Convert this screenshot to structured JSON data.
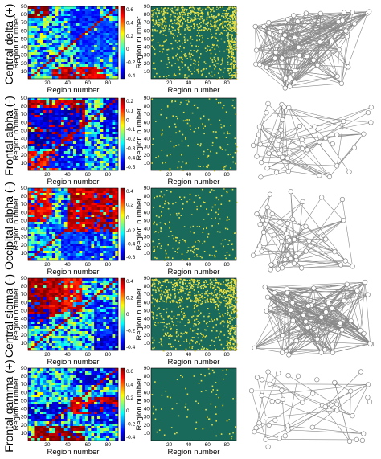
{
  "rows": [
    {
      "label": "Central delta (+)",
      "cbar_ticks": [
        "0.6",
        "0.4",
        "0.2",
        "0",
        "-0.2",
        "-0.4"
      ],
      "net_seed": 11,
      "net_edges": 260,
      "dense": true
    },
    {
      "label": "Frontal alpha (-)",
      "cbar_ticks": [
        "0.2",
        "0.1",
        "0",
        "-0.1",
        "-0.2",
        "-0.3",
        "-0.4",
        "-0.5"
      ],
      "net_seed": 23,
      "net_edges": 70,
      "dense": false
    },
    {
      "label": "Occipital alpha (-)",
      "cbar_ticks": [
        "0.4",
        "0.2",
        "0",
        "-0.2",
        "-0.4",
        "-0.6"
      ],
      "net_seed": 37,
      "net_edges": 90,
      "dense": false
    },
    {
      "label": "Central sigma (-)",
      "cbar_ticks": [
        "0.4",
        "0.2",
        "0",
        "-0.2",
        "-0.4"
      ],
      "net_seed": 51,
      "net_edges": 300,
      "dense": true
    },
    {
      "label": "Frontal gamma (+)",
      "cbar_ticks": [
        "0.6",
        "0.4",
        "0.2",
        "0",
        "-0.2",
        "-0.4"
      ],
      "net_seed": 67,
      "net_edges": 35,
      "dense": false
    }
  ],
  "axis": {
    "xlabel": "Region number",
    "ylabel": "Region number",
    "heat_xticks": [
      "20",
      "40",
      "60",
      "80"
    ],
    "heat_yticks": [
      "90",
      "80",
      "70",
      "60",
      "50",
      "40",
      "30",
      "20",
      "10"
    ],
    "bin_xticks": [
      "20",
      "40",
      "60",
      "80"
    ],
    "bin_yticks": [
      "90",
      "80",
      "70",
      "60",
      "50",
      "40",
      "30",
      "20",
      "10"
    ]
  },
  "colors": {
    "binary_bg": "#1a6a5c",
    "binary_fg": "#e8e043",
    "edge": "#8a8a8a",
    "node_fill": "#ffffff",
    "node_stroke": "#777777"
  },
  "chart_data": [
    {
      "type": "heatmap",
      "title": "",
      "ylabel": "Central delta (+)",
      "xlabel": "Region number",
      "x_range": [
        1,
        90
      ],
      "y_range": [
        1,
        90
      ],
      "color_range": [
        -0.4,
        0.6
      ]
    },
    {
      "type": "heatmap",
      "title": "",
      "ylabel": "Frontal alpha (-)",
      "xlabel": "Region number",
      "x_range": [
        1,
        90
      ],
      "y_range": [
        1,
        90
      ],
      "color_range": [
        -0.5,
        0.2
      ]
    },
    {
      "type": "heatmap",
      "title": "",
      "ylabel": "Occipital alpha (-)",
      "xlabel": "Region number",
      "x_range": [
        1,
        90
      ],
      "y_range": [
        1,
        90
      ],
      "color_range": [
        -0.6,
        0.4
      ]
    },
    {
      "type": "heatmap",
      "title": "",
      "ylabel": "Central sigma (-)",
      "xlabel": "Region number",
      "x_range": [
        1,
        90
      ],
      "y_range": [
        1,
        90
      ],
      "color_range": [
        -0.4,
        0.4
      ]
    },
    {
      "type": "heatmap",
      "title": "",
      "ylabel": "Frontal gamma (+)",
      "xlabel": "Region number",
      "x_range": [
        1,
        90
      ],
      "y_range": [
        1,
        90
      ],
      "color_range": [
        -0.4,
        0.6
      ]
    }
  ]
}
